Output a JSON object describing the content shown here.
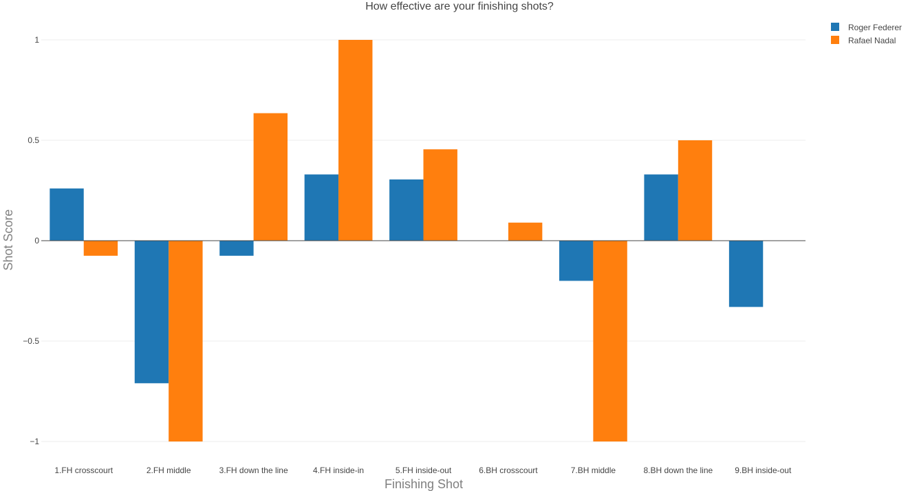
{
  "chart_data": {
    "type": "bar",
    "title": "How effective are your finishing shots?",
    "xlabel": "Finishing Shot",
    "ylabel": "Shot Score",
    "categories": [
      "1.FH crosscourt",
      "2.FH middle",
      "3.FH down the line",
      "4.FH inside-in",
      "5.FH inside-out",
      "6.BH crosscourt",
      "7.BH middle",
      "8.BH down the line",
      "9.BH inside-out"
    ],
    "series": [
      {
        "name": "Roger Federer",
        "color": "#1f77b4",
        "values": [
          0.26,
          -0.71,
          -0.075,
          0.33,
          0.305,
          0,
          -0.2,
          0.33,
          -0.33
        ]
      },
      {
        "name": "Rafael Nadal",
        "color": "#ff7f0e",
        "values": [
          -0.075,
          -1,
          0.635,
          1,
          0.455,
          0.09,
          -1,
          0.5,
          0
        ]
      }
    ],
    "ylim": [
      -1.05,
      1.05
    ],
    "yticks": [
      1,
      0.5,
      0,
      -0.5,
      -1
    ],
    "ytick_labels": [
      "1",
      "0.5",
      "0",
      "−0.5",
      "−1"
    ],
    "grid": true,
    "legend_position": "top-right"
  }
}
